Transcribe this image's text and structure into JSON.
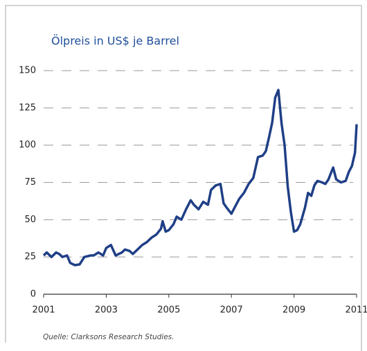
{
  "chart_data": {
    "type": "line",
    "title": "Ölpreis in US$ je Barrel",
    "source": "Quelle: Clarksons Research Studies.",
    "x": [
      2001.0,
      2001.1,
      2001.25,
      2001.4,
      2001.5,
      2001.6,
      2001.75,
      2001.85,
      2002.0,
      2002.15,
      2002.3,
      2002.5,
      2002.6,
      2002.75,
      2002.9,
      2003.0,
      2003.15,
      2003.3,
      2003.5,
      2003.6,
      2003.75,
      2003.85,
      2004.0,
      2004.15,
      2004.3,
      2004.45,
      2004.6,
      2004.75,
      2004.8,
      2004.9,
      2005.0,
      2005.15,
      2005.25,
      2005.4,
      2005.55,
      2005.7,
      2005.8,
      2005.95,
      2006.1,
      2006.25,
      2006.35,
      2006.5,
      2006.65,
      2006.75,
      2006.85,
      2007.0,
      2007.1,
      2007.25,
      2007.4,
      2007.55,
      2007.7,
      2007.85,
      2008.0,
      2008.1,
      2008.2,
      2008.3,
      2008.4,
      2008.5,
      2008.6,
      2008.7,
      2008.8,
      2008.9,
      2009.0,
      2009.1,
      2009.2,
      2009.35,
      2009.45,
      2009.55,
      2009.65,
      2009.75,
      2009.9,
      2010.0,
      2010.1,
      2010.25,
      2010.35,
      2010.5,
      2010.65,
      2010.75,
      2010.85,
      2010.95,
      2011.0
    ],
    "series": [
      {
        "name": "Ölpreis",
        "color": "#1f3f86",
        "values": [
          26,
          28,
          25,
          28,
          27,
          25,
          26,
          21,
          19.5,
          20,
          25,
          26,
          26,
          28,
          26,
          31,
          33,
          26,
          28,
          30,
          29,
          27,
          30,
          33,
          35,
          38,
          40,
          44,
          49,
          42,
          43,
          47,
          52,
          50,
          57,
          63,
          60,
          57,
          62,
          60,
          70,
          73,
          74,
          61,
          58,
          54,
          58,
          64,
          68,
          74,
          78,
          92,
          93,
          96,
          105,
          115,
          132,
          137,
          115,
          100,
          72,
          55,
          42,
          43,
          47,
          58,
          68,
          66,
          73,
          76,
          75,
          74,
          77,
          85,
          77,
          75,
          76,
          82,
          86,
          95,
          114
        ]
      }
    ],
    "xlim": [
      2001,
      2011
    ],
    "xticks": [
      2001,
      2003,
      2005,
      2007,
      2009,
      2011
    ],
    "ylim": [
      0,
      150
    ],
    "yticks": [
      0,
      25,
      50,
      75,
      100,
      125,
      150
    ],
    "grid": true
  }
}
